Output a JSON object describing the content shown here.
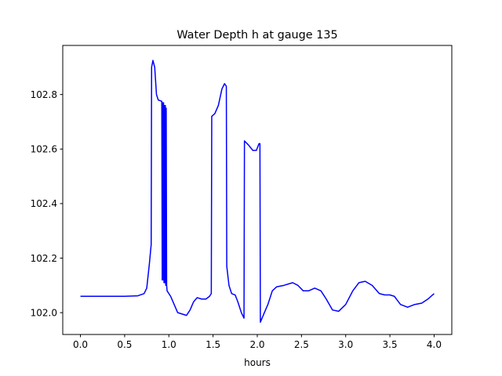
{
  "chart_data": {
    "type": "line",
    "title": "Water Depth h at gauge 135",
    "xlabel": "hours",
    "ylabel": "",
    "xlim": [
      -0.2,
      4.2
    ],
    "ylim": [
      101.92,
      102.98
    ],
    "x_ticks": [
      0.0,
      0.5,
      1.0,
      1.5,
      2.0,
      2.5,
      3.0,
      3.5,
      4.0
    ],
    "x_tick_labels": [
      "0.0",
      "0.5",
      "1.0",
      "1.5",
      "2.0",
      "2.5",
      "3.0",
      "3.5",
      "4.0"
    ],
    "y_ticks": [
      102.0,
      102.2,
      102.4,
      102.6,
      102.8
    ],
    "y_tick_labels": [
      "102.0",
      "102.2",
      "102.4",
      "102.6",
      "102.8"
    ],
    "grid": false,
    "series": [
      {
        "color": "#0000ff",
        "points": [
          [
            0.0,
            102.06
          ],
          [
            0.3,
            102.06
          ],
          [
            0.5,
            102.06
          ],
          [
            0.65,
            102.062
          ],
          [
            0.72,
            102.07
          ],
          [
            0.75,
            102.09
          ],
          [
            0.78,
            102.18
          ],
          [
            0.8,
            102.25
          ],
          [
            0.805,
            102.9
          ],
          [
            0.82,
            102.925
          ],
          [
            0.84,
            102.9
          ],
          [
            0.86,
            102.8
          ],
          [
            0.88,
            102.78
          ],
          [
            0.92,
            102.775
          ],
          [
            0.925,
            102.12
          ],
          [
            0.93,
            102.77
          ],
          [
            0.935,
            102.12
          ],
          [
            0.94,
            102.77
          ],
          [
            0.945,
            102.11
          ],
          [
            0.95,
            102.76
          ],
          [
            0.955,
            102.11
          ],
          [
            0.96,
            102.76
          ],
          [
            0.965,
            102.1
          ],
          [
            0.97,
            102.75
          ],
          [
            0.975,
            102.1
          ],
          [
            0.98,
            102.08
          ],
          [
            1.02,
            102.06
          ],
          [
            1.06,
            102.03
          ],
          [
            1.1,
            102.0
          ],
          [
            1.15,
            101.995
          ],
          [
            1.2,
            101.99
          ],
          [
            1.24,
            102.01
          ],
          [
            1.28,
            102.04
          ],
          [
            1.32,
            102.055
          ],
          [
            1.37,
            102.05
          ],
          [
            1.42,
            102.05
          ],
          [
            1.46,
            102.06
          ],
          [
            1.48,
            102.07
          ],
          [
            1.485,
            102.72
          ],
          [
            1.52,
            102.73
          ],
          [
            1.56,
            102.76
          ],
          [
            1.6,
            102.82
          ],
          [
            1.63,
            102.84
          ],
          [
            1.65,
            102.83
          ],
          [
            1.655,
            102.17
          ],
          [
            1.68,
            102.1
          ],
          [
            1.71,
            102.07
          ],
          [
            1.75,
            102.065
          ],
          [
            1.78,
            102.04
          ],
          [
            1.82,
            102.0
          ],
          [
            1.85,
            101.98
          ],
          [
            1.855,
            102.63
          ],
          [
            1.9,
            102.615
          ],
          [
            1.95,
            102.595
          ],
          [
            1.99,
            102.595
          ],
          [
            2.02,
            102.62
          ],
          [
            2.03,
            102.62
          ],
          [
            2.035,
            101.965
          ],
          [
            2.08,
            102.0
          ],
          [
            2.12,
            102.03
          ],
          [
            2.17,
            102.08
          ],
          [
            2.22,
            102.095
          ],
          [
            2.3,
            102.1
          ],
          [
            2.4,
            102.11
          ],
          [
            2.46,
            102.1
          ],
          [
            2.52,
            102.08
          ],
          [
            2.58,
            102.08
          ],
          [
            2.65,
            102.09
          ],
          [
            2.72,
            102.08
          ],
          [
            2.78,
            102.05
          ],
          [
            2.85,
            102.01
          ],
          [
            2.92,
            102.005
          ],
          [
            3.0,
            102.03
          ],
          [
            3.08,
            102.08
          ],
          [
            3.15,
            102.11
          ],
          [
            3.22,
            102.115
          ],
          [
            3.3,
            102.1
          ],
          [
            3.38,
            102.07
          ],
          [
            3.44,
            102.065
          ],
          [
            3.5,
            102.065
          ],
          [
            3.55,
            102.06
          ],
          [
            3.62,
            102.03
          ],
          [
            3.7,
            102.02
          ],
          [
            3.78,
            102.03
          ],
          [
            3.86,
            102.035
          ],
          [
            3.93,
            102.05
          ],
          [
            4.0,
            102.07
          ]
        ]
      }
    ]
  }
}
